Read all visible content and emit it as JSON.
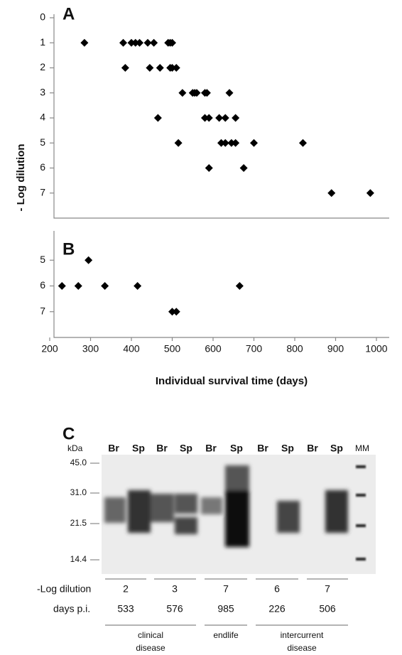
{
  "chart_data": [
    {
      "type": "scatter",
      "panel": "A",
      "ylabel": "- Log dilution",
      "x": [
        285,
        380,
        400,
        410,
        420,
        440,
        455,
        490,
        495,
        500,
        385,
        445,
        470,
        495,
        500,
        510,
        525,
        550,
        555,
        560,
        580,
        585,
        640,
        465,
        580,
        590,
        615,
        630,
        655,
        515,
        620,
        630,
        645,
        655,
        700,
        820,
        590,
        675,
        890,
        985
      ],
      "values": [
        1,
        1,
        1,
        1,
        1,
        1,
        1,
        1,
        1,
        1,
        2,
        2,
        2,
        2,
        2,
        2,
        3,
        3,
        3,
        3,
        3,
        3,
        3,
        4,
        4,
        4,
        4,
        4,
        4,
        5,
        5,
        5,
        5,
        5,
        5,
        5,
        6,
        6,
        7,
        7
      ],
      "color": "#000000",
      "xlim": [
        200,
        1000
      ],
      "ylim": [
        8,
        0
      ],
      "yticks": [
        0,
        1,
        2,
        3,
        4,
        5,
        6,
        7
      ]
    },
    {
      "type": "scatter",
      "panel": "B",
      "xlabel": "Individual survival time (days)",
      "x": [
        230,
        270,
        295,
        335,
        415,
        500,
        510,
        665
      ],
      "values": [
        6,
        6,
        5,
        6,
        6,
        7,
        7,
        6
      ],
      "color": "#000000",
      "xlim": [
        200,
        1000
      ],
      "xticks": [
        200,
        300,
        400,
        500,
        600,
        700,
        800,
        900,
        1000
      ],
      "ylim": [
        8,
        4
      ],
      "yticks": [
        5,
        6,
        7
      ]
    }
  ],
  "blot": {
    "panel": "C",
    "unit": "kDa",
    "lanes": [
      "Br",
      "Sp",
      "Br",
      "Sp",
      "Br",
      "Sp",
      "Br",
      "Sp",
      "Br",
      "Sp",
      "MM"
    ],
    "markers": [
      "45.0",
      "31.0",
      "21.5",
      "14.4"
    ],
    "dilution_label": "-Log dilution",
    "dilutions": [
      "2",
      "3",
      "7",
      "6",
      "7"
    ],
    "days_label": "days p.i.",
    "days": [
      "533",
      "576",
      "985",
      "226",
      "506"
    ],
    "groups": [
      [
        "clinical",
        "disease"
      ],
      [
        "endlife"
      ],
      [
        "intercurrent",
        "disease"
      ]
    ]
  }
}
